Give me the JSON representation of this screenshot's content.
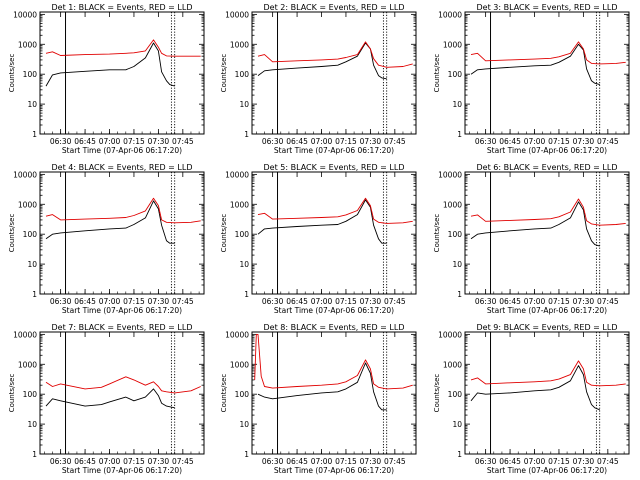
{
  "figure": {
    "colors": {
      "events": "#000000",
      "lld": "#e00000",
      "axis": "#000000",
      "background": "#ffffff"
    },
    "common": {
      "ylabel": "Counts/sec",
      "xlabel": "Start Time (07-Apr-06 06:17:20)",
      "xticks": [
        "06:30",
        "06:45",
        "07:00",
        "07:15",
        "07:30",
        "07:45"
      ],
      "yticks": [
        "1",
        "10",
        "100",
        "1000",
        "10000"
      ],
      "yscale": "log",
      "ylim": [
        1,
        12000
      ]
    }
  },
  "chart_data": [
    {
      "type": "line",
      "title": "Det 1: BLACK = Events, RED = LLD",
      "series": [
        {
          "name": "Events",
          "color": "#000000",
          "x": [
            "06:21",
            "06:25",
            "06:30",
            "06:45",
            "07:00",
            "07:10",
            "07:15",
            "07:22",
            "07:27",
            "07:30",
            "07:32",
            "07:35",
            "07:37",
            "07:40"
          ],
          "y": [
            40,
            95,
            110,
            125,
            140,
            140,
            180,
            350,
            1100,
            600,
            120,
            60,
            45,
            40
          ]
        },
        {
          "name": "LLD",
          "color": "#e00000",
          "x": [
            "06:21",
            "06:25",
            "06:30",
            "06:45",
            "07:00",
            "07:10",
            "07:15",
            "07:22",
            "07:27",
            "07:30",
            "07:32",
            "07:35",
            "07:40",
            "07:50",
            "07:56"
          ],
          "y": [
            500,
            560,
            420,
            450,
            470,
            500,
            520,
            600,
            1400,
            800,
            500,
            410,
            400,
            400,
            400
          ]
        }
      ]
    },
    {
      "type": "line",
      "title": "Det 2: BLACK = Events, RED = LLD",
      "series": [
        {
          "name": "Events",
          "color": "#000000",
          "x": [
            "06:21",
            "06:25",
            "06:30",
            "06:45",
            "07:00",
            "07:10",
            "07:15",
            "07:22",
            "07:27",
            "07:30",
            "07:32",
            "07:35",
            "07:37",
            "07:40"
          ],
          "y": [
            90,
            130,
            140,
            160,
            180,
            200,
            260,
            400,
            1100,
            700,
            200,
            90,
            75,
            70
          ]
        },
        {
          "name": "LLD",
          "color": "#e00000",
          "x": [
            "06:21",
            "06:25",
            "06:30",
            "06:45",
            "07:00",
            "07:10",
            "07:15",
            "07:22",
            "07:27",
            "07:30",
            "07:32",
            "07:35",
            "07:40",
            "07:50",
            "07:56"
          ],
          "y": [
            400,
            450,
            260,
            280,
            300,
            320,
            360,
            450,
            1200,
            700,
            330,
            200,
            170,
            180,
            220
          ]
        }
      ]
    },
    {
      "type": "line",
      "title": "Det 3: BLACK = Events, RED = LLD",
      "series": [
        {
          "name": "Events",
          "color": "#000000",
          "x": [
            "06:21",
            "06:25",
            "06:30",
            "06:45",
            "07:00",
            "07:10",
            "07:15",
            "07:22",
            "07:27",
            "07:30",
            "07:32",
            "07:35",
            "07:37",
            "07:40"
          ],
          "y": [
            100,
            140,
            150,
            170,
            190,
            200,
            250,
            400,
            1000,
            650,
            150,
            60,
            50,
            45
          ]
        },
        {
          "name": "LLD",
          "color": "#e00000",
          "x": [
            "06:21",
            "06:25",
            "06:30",
            "06:45",
            "07:00",
            "07:10",
            "07:15",
            "07:22",
            "07:27",
            "07:30",
            "07:32",
            "07:35",
            "07:40",
            "07:50",
            "07:56"
          ],
          "y": [
            450,
            500,
            280,
            300,
            320,
            340,
            380,
            500,
            1200,
            700,
            300,
            230,
            220,
            230,
            250
          ]
        }
      ]
    },
    {
      "type": "line",
      "title": "Det 4: BLACK = Events, RED = LLD",
      "series": [
        {
          "name": "Events",
          "color": "#000000",
          "x": [
            "06:21",
            "06:25",
            "06:30",
            "06:45",
            "07:00",
            "07:10",
            "07:15",
            "07:22",
            "07:27",
            "07:30",
            "07:32",
            "07:35",
            "07:37",
            "07:40"
          ],
          "y": [
            70,
            100,
            110,
            130,
            150,
            160,
            210,
            350,
            1300,
            700,
            200,
            60,
            50,
            50
          ]
        },
        {
          "name": "LLD",
          "color": "#e00000",
          "x": [
            "06:21",
            "06:25",
            "06:30",
            "06:45",
            "07:00",
            "07:10",
            "07:15",
            "07:22",
            "07:27",
            "07:30",
            "07:32",
            "07:35",
            "07:40",
            "07:50",
            "07:56"
          ],
          "y": [
            400,
            450,
            300,
            320,
            340,
            360,
            420,
            600,
            1600,
            900,
            300,
            250,
            240,
            250,
            280
          ]
        }
      ]
    },
    {
      "type": "line",
      "title": "Det 5: BLACK = Events, RED = LLD",
      "series": [
        {
          "name": "Events",
          "color": "#000000",
          "x": [
            "06:21",
            "06:25",
            "06:30",
            "06:45",
            "07:00",
            "07:10",
            "07:15",
            "07:22",
            "07:27",
            "07:30",
            "07:32",
            "07:35",
            "07:37",
            "07:40"
          ],
          "y": [
            100,
            150,
            160,
            180,
            200,
            210,
            270,
            450,
            1400,
            800,
            200,
            70,
            50,
            50
          ]
        },
        {
          "name": "LLD",
          "color": "#e00000",
          "x": [
            "06:21",
            "06:25",
            "06:30",
            "06:45",
            "07:00",
            "07:10",
            "07:15",
            "07:22",
            "07:27",
            "07:30",
            "07:32",
            "07:35",
            "07:40",
            "07:50",
            "07:56"
          ],
          "y": [
            450,
            500,
            320,
            340,
            360,
            380,
            440,
            620,
            1600,
            900,
            320,
            250,
            230,
            240,
            270
          ]
        }
      ]
    },
    {
      "type": "line",
      "title": "Det 6: BLACK = Events, RED = LLD",
      "series": [
        {
          "name": "Events",
          "color": "#000000",
          "x": [
            "06:21",
            "06:25",
            "06:30",
            "06:45",
            "07:00",
            "07:10",
            "07:15",
            "07:22",
            "07:27",
            "07:30",
            "07:32",
            "07:35",
            "07:37",
            "07:40"
          ],
          "y": [
            70,
            100,
            110,
            130,
            150,
            160,
            210,
            350,
            1200,
            650,
            150,
            60,
            45,
            40
          ]
        },
        {
          "name": "LLD",
          "color": "#e00000",
          "x": [
            "06:21",
            "06:25",
            "06:30",
            "06:45",
            "07:00",
            "07:10",
            "07:15",
            "07:22",
            "07:27",
            "07:30",
            "07:32",
            "07:35",
            "07:40",
            "07:50",
            "07:56"
          ],
          "y": [
            400,
            440,
            270,
            290,
            310,
            330,
            380,
            550,
            1500,
            800,
            280,
            220,
            200,
            210,
            230
          ]
        }
      ]
    },
    {
      "type": "line",
      "title": "Det 7: BLACK = Events, RED = LLD",
      "series": [
        {
          "name": "Events",
          "color": "#000000",
          "x": [
            "06:21",
            "06:25",
            "06:30",
            "06:45",
            "06:55",
            "07:00",
            "07:10",
            "07:15",
            "07:22",
            "07:27",
            "07:30",
            "07:32",
            "07:35",
            "07:40"
          ],
          "y": [
            40,
            70,
            60,
            40,
            45,
            55,
            80,
            60,
            80,
            150,
            90,
            50,
            40,
            35
          ]
        },
        {
          "name": "LLD",
          "color": "#e00000",
          "x": [
            "06:21",
            "06:25",
            "06:30",
            "06:45",
            "06:55",
            "07:00",
            "07:10",
            "07:15",
            "07:22",
            "07:27",
            "07:30",
            "07:32",
            "07:35",
            "07:40",
            "07:50",
            "07:56"
          ],
          "y": [
            250,
            180,
            220,
            150,
            170,
            220,
            380,
            300,
            200,
            260,
            180,
            130,
            120,
            110,
            130,
            180
          ]
        }
      ]
    },
    {
      "type": "line",
      "title": "Det 8: BLACK = Events, RED = LLD",
      "series": [
        {
          "name": "Events",
          "color": "#000000",
          "x": [
            "06:21",
            "06:25",
            "06:30",
            "06:45",
            "07:00",
            "07:10",
            "07:15",
            "07:22",
            "07:27",
            "07:30",
            "07:32",
            "07:35",
            "07:37",
            "07:40"
          ],
          "y": [
            100,
            80,
            70,
            90,
            110,
            120,
            150,
            250,
            1100,
            500,
            120,
            40,
            30,
            30
          ]
        },
        {
          "name": "LLD",
          "color": "#e00000",
          "x": [
            "06:19",
            "06:20",
            "06:21",
            "06:23",
            "06:25",
            "06:30",
            "06:45",
            "07:00",
            "07:10",
            "07:15",
            "07:22",
            "07:27",
            "07:30",
            "07:32",
            "07:35",
            "07:40",
            "07:50",
            "07:56"
          ],
          "y": [
            300,
            10000,
            10000,
            400,
            180,
            160,
            180,
            200,
            220,
            260,
            420,
            1400,
            700,
            220,
            170,
            150,
            160,
            200
          ]
        }
      ]
    },
    {
      "type": "line",
      "title": "Det 9: BLACK = Events, RED = LLD",
      "series": [
        {
          "name": "Events",
          "color": "#000000",
          "x": [
            "06:21",
            "06:25",
            "06:30",
            "06:45",
            "07:00",
            "07:10",
            "07:15",
            "07:22",
            "07:27",
            "07:30",
            "07:32",
            "07:35",
            "07:37",
            "07:40"
          ],
          "y": [
            60,
            110,
            100,
            110,
            130,
            140,
            170,
            280,
            900,
            450,
            120,
            45,
            35,
            30
          ]
        },
        {
          "name": "LLD",
          "color": "#e00000",
          "x": [
            "06:21",
            "06:25",
            "06:30",
            "06:45",
            "07:00",
            "07:10",
            "07:15",
            "07:22",
            "07:27",
            "07:30",
            "07:32",
            "07:35",
            "07:40",
            "07:50",
            "07:56"
          ],
          "y": [
            300,
            350,
            220,
            240,
            260,
            280,
            320,
            450,
            1300,
            700,
            250,
            200,
            190,
            200,
            220
          ]
        }
      ]
    }
  ]
}
